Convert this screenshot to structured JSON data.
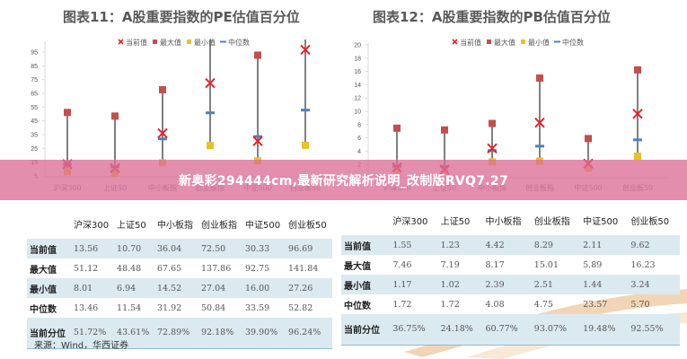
{
  "banner": {
    "text": "新奥彩294444cm,最新研究解析说明_改制版RVQ7.27"
  },
  "source": "来源：Wind，华西证券",
  "legend": {
    "current": "当前值",
    "max": "最大值",
    "min": "最小值",
    "median": "中位数"
  },
  "colors": {
    "current": "#e8202a",
    "max": "#c0504d",
    "min": "#e8c22a",
    "median": "#4f81bd",
    "line": "#808080",
    "row_shade": "#dbe9f0"
  },
  "chart_data": [
    {
      "type": "table",
      "subtype": "high-low-marker",
      "title": "图表11：A股重要指数的PE估值百分位",
      "xlabel": "",
      "ylabel": "",
      "ylim": [
        5,
        95
      ],
      "yticks": [
        5,
        15,
        25,
        35,
        45,
        55,
        65,
        75,
        85,
        95
      ],
      "grid": false,
      "legend_position": "top",
      "categories": [
        "沪深300",
        "上证50",
        "中小板指",
        "创业板指",
        "中证500",
        "创业板50"
      ],
      "series": [
        {
          "name": "当前值",
          "marker": "x",
          "values": [
            13.56,
            10.7,
            36.04,
            72.5,
            30.33,
            96.69
          ]
        },
        {
          "name": "最大值",
          "marker": "square",
          "values": [
            51.12,
            48.48,
            67.65,
            137.86,
            92.75,
            141.84
          ]
        },
        {
          "name": "最小值",
          "marker": "square",
          "values": [
            8.01,
            6.94,
            14.52,
            27.04,
            16.0,
            27.26
          ]
        },
        {
          "name": "中位数",
          "marker": "dash",
          "values": [
            13.46,
            11.54,
            31.92,
            50.84,
            33.59,
            52.82
          ]
        }
      ],
      "table": {
        "headers": [
          "",
          "沪深300",
          "上证50",
          "中小板指",
          "创业板指",
          "中证500",
          "创业板50"
        ],
        "rows": [
          [
            "当前值",
            "13.56",
            "10.70",
            "36.04",
            "72.50",
            "30.33",
            "96.69"
          ],
          [
            "最大值",
            "51.12",
            "48.48",
            "67.65",
            "137.86",
            "92.75",
            "141.84"
          ],
          [
            "最小值",
            "8.01",
            "6.94",
            "14.52",
            "27.04",
            "16.00",
            "27.26"
          ],
          [
            "中位数",
            "13.46",
            "11.54",
            "31.92",
            "50.84",
            "33.59",
            "52.82"
          ],
          [
            "当前分位",
            "51.72%",
            "43.61%",
            "72.89%",
            "92.18%",
            "39.90%",
            "96.24%"
          ]
        ]
      }
    },
    {
      "type": "table",
      "subtype": "high-low-marker",
      "title": "图表12：A股重要指数的PB估值百分位",
      "xlabel": "",
      "ylabel": "",
      "ylim": [
        0,
        20
      ],
      "yticks": [
        2,
        4,
        6,
        8,
        10,
        12,
        14,
        16,
        18,
        20
      ],
      "grid": false,
      "legend_position": "top",
      "categories": [
        "沪深300",
        "上证50",
        "中小板指",
        "创业板指",
        "中证500",
        "创业板50"
      ],
      "series": [
        {
          "name": "当前值",
          "marker": "x",
          "values": [
            1.55,
            1.23,
            4.42,
            8.29,
            2.11,
            9.62
          ]
        },
        {
          "name": "最大值",
          "marker": "square",
          "values": [
            7.46,
            7.19,
            8.17,
            15.01,
            5.89,
            16.23
          ]
        },
        {
          "name": "最小值",
          "marker": "square",
          "values": [
            1.17,
            1.02,
            2.39,
            2.51,
            1.44,
            3.24
          ]
        },
        {
          "name": "中位数",
          "marker": "dash",
          "values": [
            1.72,
            1.72,
            4.08,
            4.75,
            23.57,
            5.7
          ]
        }
      ],
      "table": {
        "headers": [
          "",
          "沪深300",
          "上证50",
          "中小板指",
          "创业板指",
          "中证500",
          "创业板50"
        ],
        "rows": [
          [
            "当前值",
            "1.55",
            "1.23",
            "4.42",
            "8.29",
            "2.11",
            "9.62"
          ],
          [
            "最大值",
            "7.46",
            "7.19",
            "8.17",
            "15.01",
            "5.89",
            "16.23"
          ],
          [
            "最小值",
            "1.17",
            "1.02",
            "2.39",
            "2.51",
            "1.44",
            "3.24"
          ],
          [
            "中位数",
            "1.72",
            "1.72",
            "4.08",
            "4.75",
            "23.57",
            "5.70"
          ],
          [
            "当前分位",
            "36.75%",
            "24.18%",
            "60.77%",
            "93.07%",
            "19.48%",
            "92.55%"
          ]
        ]
      }
    }
  ]
}
